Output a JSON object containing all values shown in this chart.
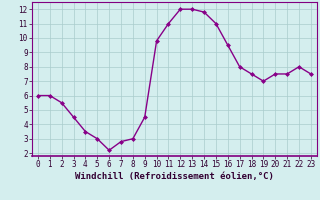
{
  "x": [
    0,
    1,
    2,
    3,
    4,
    5,
    6,
    7,
    8,
    9,
    10,
    11,
    12,
    13,
    14,
    15,
    16,
    17,
    18,
    19,
    20,
    21,
    22,
    23
  ],
  "y": [
    6.0,
    6.0,
    5.5,
    4.5,
    3.5,
    3.0,
    2.2,
    2.8,
    3.0,
    4.5,
    9.8,
    11.0,
    12.0,
    12.0,
    11.8,
    11.0,
    9.5,
    8.0,
    7.5,
    7.0,
    7.5,
    7.5,
    8.0,
    7.5
  ],
  "line_color": "#880088",
  "marker": "D",
  "marker_size": 2.0,
  "line_width": 1.0,
  "xlabel": "Windchill (Refroidissement éolien,°C)",
  "xlim": [
    -0.5,
    23.5
  ],
  "ylim": [
    1.8,
    12.5
  ],
  "yticks": [
    2,
    3,
    4,
    5,
    6,
    7,
    8,
    9,
    10,
    11,
    12
  ],
  "xticks": [
    0,
    1,
    2,
    3,
    4,
    5,
    6,
    7,
    8,
    9,
    10,
    11,
    12,
    13,
    14,
    15,
    16,
    17,
    18,
    19,
    20,
    21,
    22,
    23
  ],
  "background_color": "#d4eeee",
  "grid_color": "#aacccc",
  "tick_label_fontsize": 5.5,
  "xlabel_fontsize": 6.5,
  "spine_color": "#800080"
}
